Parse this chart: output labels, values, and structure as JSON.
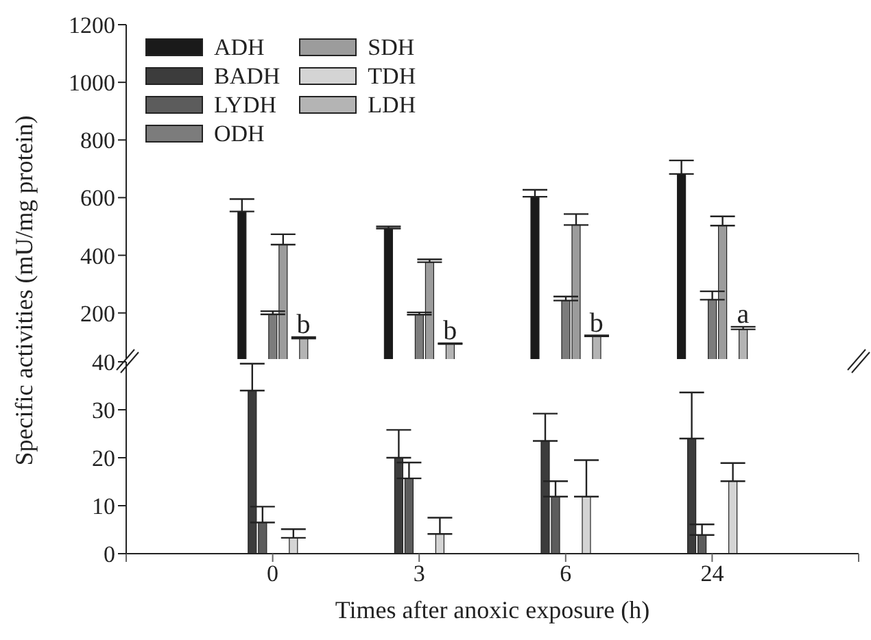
{
  "chart_data": [
    {
      "type": "bar",
      "ylabel": "Specific activities (mU/mg protein)",
      "categories": [
        null,
        "0",
        "3",
        "6",
        "24",
        null
      ],
      "ylim": [
        40,
        1200
      ],
      "yticks": [
        200,
        400,
        600,
        800,
        1000,
        1200
      ],
      "tick_labels": "y",
      "legend": "top left",
      "series": [
        {
          "name": "ADH",
          "color": "#1a1a1a",
          "values": [
            null,
            552,
            493,
            603,
            682,
            null
          ],
          "errors": [
            null,
            [
              552,
              595
            ],
            [
              493,
              500
            ],
            [
              603,
              627
            ],
            [
              682,
              729
            ],
            null
          ]
        },
        {
          "name": "BADH",
          "color": "#3c3c3c",
          "values": [
            null,
            null,
            null,
            null,
            null,
            null
          ]
        },
        {
          "name": "LYDH",
          "color": "#5c5c5c",
          "values": [
            null,
            null,
            null,
            null,
            null,
            null
          ]
        },
        {
          "name": "ODH",
          "color": "#7c7c7c",
          "values": [
            null,
            195,
            194,
            243,
            246,
            null
          ],
          "errors": [
            null,
            [
              195,
              206
            ],
            [
              194,
              202
            ],
            [
              243,
              257
            ],
            [
              246,
              275
            ],
            null
          ]
        },
        {
          "name": "SDH",
          "color": "#9c9c9c",
          "values": [
            null,
            437,
            376,
            505,
            503,
            null
          ],
          "errors": [
            null,
            [
              437,
              473
            ],
            [
              376,
              386
            ],
            [
              505,
              543
            ],
            [
              503,
              535
            ],
            null
          ]
        },
        {
          "name": "TDH",
          "color": "#d4d4d4",
          "values": [
            null,
            null,
            null,
            null,
            null,
            null
          ]
        },
        {
          "name": "LDH",
          "color": "#b4b4b4",
          "values": [
            null,
            111,
            92,
            119,
            143,
            null
          ],
          "errors": [
            null,
            [
              111,
              116
            ],
            [
              92,
              95
            ],
            [
              119,
              122
            ],
            [
              143,
              152
            ],
            null
          ]
        }
      ],
      "annotations": [
        {
          "text": "b",
          "x": "0",
          "y": 116
        },
        {
          "text": "b",
          "x": "3",
          "y": 95
        },
        {
          "text": "b",
          "x": "6",
          "y": 122
        },
        {
          "text": "a",
          "x": "24",
          "y": 152
        }
      ]
    },
    {
      "type": "bar",
      "xlabel": "Times after anoxic exposure (h)",
      "categories": [
        null,
        "0",
        "3",
        "6",
        "24",
        null
      ],
      "ylim": [
        0,
        40
      ],
      "yticks": [
        0,
        10,
        20,
        30,
        40
      ],
      "series": [
        {
          "color": "#1a1a1a",
          "values": [
            null,
            null,
            null,
            null,
            null,
            null
          ]
        },
        {
          "color": "#3c3c3c",
          "values": [
            null,
            34,
            20,
            23.5,
            24,
            null
          ],
          "errors": [
            null,
            [
              34,
              39.6
            ],
            [
              20,
              25.8
            ],
            [
              23.5,
              29.2
            ],
            [
              24,
              33.6
            ],
            null
          ]
        },
        {
          "color": "#5c5c5c",
          "values": [
            null,
            6.5,
            15.7,
            11.9,
            3.9,
            null
          ],
          "errors": [
            null,
            [
              6.5,
              9.8
            ],
            [
              15.7,
              19
            ],
            [
              11.9,
              15.1
            ],
            [
              3.9,
              6.1
            ],
            null
          ]
        },
        {
          "color": "#7c7c7c",
          "values": [
            null,
            null,
            null,
            null,
            null,
            null
          ]
        },
        {
          "color": "#9c9c9c",
          "values": [
            null,
            null,
            null,
            null,
            null,
            null
          ]
        },
        {
          "color": "#d4d4d4",
          "values": [
            null,
            3.3,
            4.1,
            11.9,
            15.1,
            null
          ],
          "errors": [
            null,
            [
              3.3,
              5.1
            ],
            [
              4.1,
              7.5
            ],
            [
              11.9,
              19.5
            ],
            [
              15.1,
              18.9
            ],
            null
          ]
        },
        {
          "color": "#b4b4b4",
          "values": [
            null,
            null,
            null,
            null,
            null,
            null
          ]
        }
      ]
    }
  ]
}
